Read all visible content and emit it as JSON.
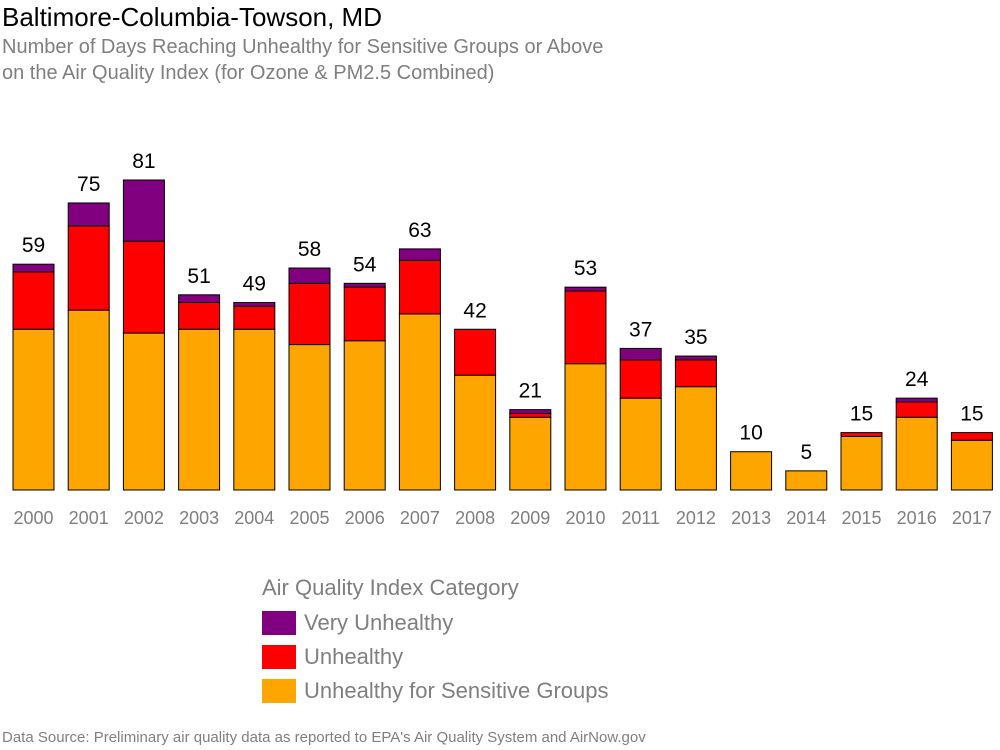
{
  "title": "Baltimore-Columbia-Towson, MD",
  "subtitle_line1": "Number of Days Reaching Unhealthy for Sensitive Groups or Above",
  "subtitle_line2": "on the Air Quality Index (for Ozone & PM2.5 Combined)",
  "source": "Data Source: Preliminary air quality data as reported to EPA's Air Quality System and AirNow.gov",
  "legend": {
    "title": "Air Quality Index Category",
    "items": [
      {
        "label": "Very Unhealthy",
        "color": "#800080"
      },
      {
        "label": "Unhealthy",
        "color": "#ff0000"
      },
      {
        "label": "Unhealthy for Sensitive Groups",
        "color": "#ffa500"
      }
    ]
  },
  "chart_data": {
    "type": "bar",
    "stacked": true,
    "categories": [
      "2000",
      "2001",
      "2002",
      "2003",
      "2004",
      "2005",
      "2006",
      "2007",
      "2008",
      "2009",
      "2010",
      "2011",
      "2012",
      "2013",
      "2014",
      "2015",
      "2016",
      "2017"
    ],
    "series": [
      {
        "name": "Unhealthy for Sensitive Groups",
        "color": "#ffa500",
        "values": [
          42,
          47,
          41,
          42,
          42,
          38,
          39,
          46,
          30,
          19,
          33,
          24,
          27,
          10,
          5,
          14,
          19,
          13
        ]
      },
      {
        "name": "Unhealthy",
        "color": "#ff0000",
        "values": [
          15,
          22,
          24,
          7,
          6,
          16,
          14,
          14,
          12,
          1,
          19,
          10,
          7,
          0,
          0,
          1,
          4,
          2
        ]
      },
      {
        "name": "Very Unhealthy",
        "color": "#800080",
        "values": [
          2,
          6,
          16,
          2,
          1,
          4,
          1,
          3,
          0,
          1,
          1,
          3,
          1,
          0,
          0,
          0,
          1,
          0
        ]
      }
    ],
    "totals": [
      59,
      75,
      81,
      51,
      49,
      58,
      54,
      63,
      42,
      21,
      53,
      37,
      35,
      10,
      5,
      15,
      24,
      15
    ],
    "ylim": [
      0,
      81
    ],
    "grid": false,
    "legend_position": "bottom"
  }
}
